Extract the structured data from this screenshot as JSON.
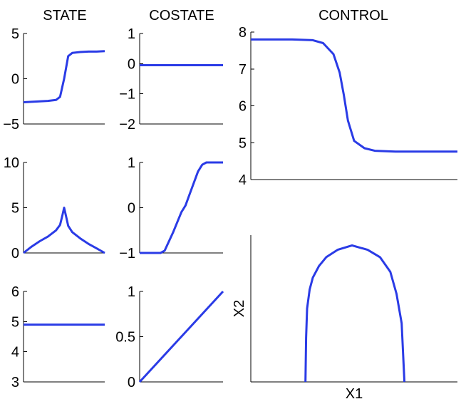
{
  "titles": {
    "state": "STATE",
    "costate": "COSTATE",
    "control": "CONTROL"
  },
  "colors": {
    "series": "#2a3be6",
    "axis": "#000000"
  },
  "chart_data": [
    {
      "id": "state-1",
      "type": "line",
      "ylim": [
        -5,
        5
      ],
      "yticks": [
        "5",
        "0",
        "−5"
      ],
      "ytick_values": [
        5,
        0,
        -5
      ],
      "x": [
        0,
        0.1,
        0.2,
        0.3,
        0.4,
        0.45,
        0.5,
        0.55,
        0.6,
        0.7,
        0.8,
        0.9,
        1.0
      ],
      "y": [
        -2.6,
        -2.55,
        -2.5,
        -2.45,
        -2.35,
        -2.0,
        0.0,
        2.5,
        2.85,
        2.95,
        3.0,
        3.0,
        3.05
      ]
    },
    {
      "id": "costate-1",
      "type": "line",
      "ylim": [
        -2,
        1
      ],
      "yticks": [
        "1",
        "0",
        "−1",
        "−2"
      ],
      "ytick_values": [
        1,
        0,
        -1,
        -2
      ],
      "x": [
        0,
        1
      ],
      "y": [
        -0.05,
        -0.05
      ]
    },
    {
      "id": "control-1",
      "type": "line",
      "ylim": [
        4,
        8
      ],
      "yticks": [
        "8",
        "7",
        "6",
        "5",
        "4"
      ],
      "ytick_values": [
        8,
        7,
        6,
        5,
        4
      ],
      "x": [
        0,
        0.1,
        0.2,
        0.3,
        0.35,
        0.4,
        0.43,
        0.45,
        0.47,
        0.5,
        0.55,
        0.6,
        0.7,
        0.8,
        0.9,
        1.0
      ],
      "y": [
        7.8,
        7.8,
        7.8,
        7.78,
        7.7,
        7.4,
        6.9,
        6.3,
        5.6,
        5.05,
        4.85,
        4.78,
        4.76,
        4.76,
        4.76,
        4.76
      ]
    },
    {
      "id": "state-2",
      "type": "line",
      "ylim": [
        0,
        10
      ],
      "yticks": [
        "10",
        "5",
        "0"
      ],
      "ytick_values": [
        10,
        5,
        0
      ],
      "x": [
        0,
        0.1,
        0.2,
        0.3,
        0.4,
        0.45,
        0.48,
        0.5,
        0.52,
        0.55,
        0.6,
        0.7,
        0.8,
        0.9,
        1.0
      ],
      "y": [
        0,
        0.7,
        1.3,
        1.8,
        2.5,
        3.1,
        4.2,
        5.0,
        4.2,
        3.0,
        2.3,
        1.6,
        1.0,
        0.5,
        0.0
      ]
    },
    {
      "id": "costate-2",
      "type": "line",
      "ylim": [
        -1,
        1
      ],
      "yticks": [
        "1",
        "0",
        "−1"
      ],
      "ytick_values": [
        1,
        0,
        -1
      ],
      "x": [
        0,
        0.2,
        0.25,
        0.3,
        0.4,
        0.5,
        0.55,
        0.6,
        0.7,
        0.75,
        0.8,
        0.85,
        0.9,
        1.0
      ],
      "y": [
        -1.0,
        -1.0,
        -1.0,
        -0.95,
        -0.55,
        -0.1,
        0.05,
        0.3,
        0.8,
        0.95,
        1.0,
        1.0,
        1.0,
        1.0
      ]
    },
    {
      "id": "state-3",
      "type": "line",
      "ylim": [
        3,
        6
      ],
      "yticks": [
        "6",
        "5",
        "4",
        "3"
      ],
      "ytick_values": [
        6,
        5,
        4,
        3
      ],
      "x": [
        0,
        1
      ],
      "y": [
        4.9,
        4.9
      ]
    },
    {
      "id": "costate-3",
      "type": "line",
      "ylim": [
        0,
        1
      ],
      "yticks": [
        "1",
        "0.5",
        "0"
      ],
      "ytick_values": [
        1,
        0.5,
        0
      ],
      "x": [
        0,
        1
      ],
      "y": [
        0,
        1
      ]
    },
    {
      "id": "control-2",
      "type": "line",
      "xlabel": "X1",
      "ylabel": "X2",
      "ylim": [
        0,
        1
      ],
      "x": [
        0.2645,
        0.2675,
        0.2725,
        0.285,
        0.3,
        0.33,
        0.365,
        0.42,
        0.49,
        0.565,
        0.625,
        0.675,
        0.705,
        0.73,
        0.7435
      ],
      "y": [
        0.0,
        0.3,
        0.5,
        0.63,
        0.71,
        0.79,
        0.85,
        0.9,
        0.93,
        0.9,
        0.85,
        0.75,
        0.6,
        0.4,
        0.0
      ]
    }
  ]
}
